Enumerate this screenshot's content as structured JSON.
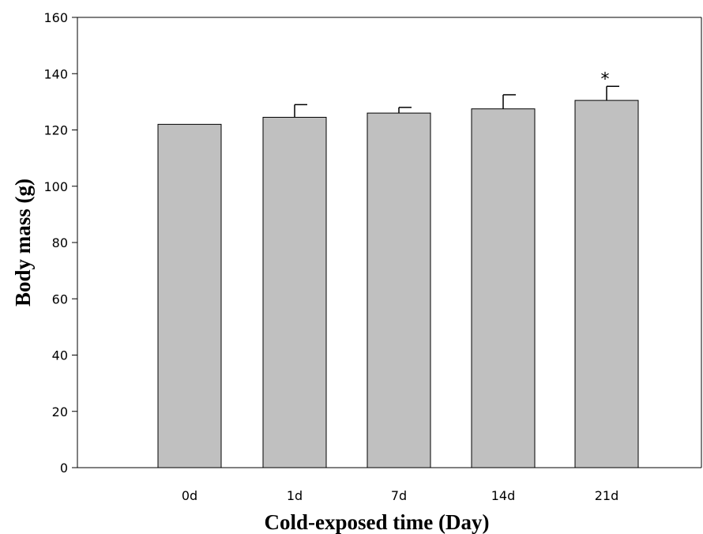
{
  "chart_data": {
    "type": "bar",
    "categories": [
      "0d",
      "1d",
      "7d",
      "14d",
      "21d"
    ],
    "values": [
      122,
      124.5,
      126,
      127.5,
      130.5
    ],
    "errors": [
      0,
      4.5,
      2,
      5,
      5
    ],
    "annotations": [
      "",
      "",
      "",
      "",
      "*"
    ],
    "xlabel": "Cold-exposed time (Day)",
    "ylabel": "Body mass (g)",
    "ylim": [
      0,
      160
    ],
    "yticks": [
      0,
      20,
      40,
      60,
      80,
      100,
      120,
      140,
      160
    ],
    "grid": false,
    "bar_color": "#c0c0c0",
    "edge_color": "#000000"
  }
}
